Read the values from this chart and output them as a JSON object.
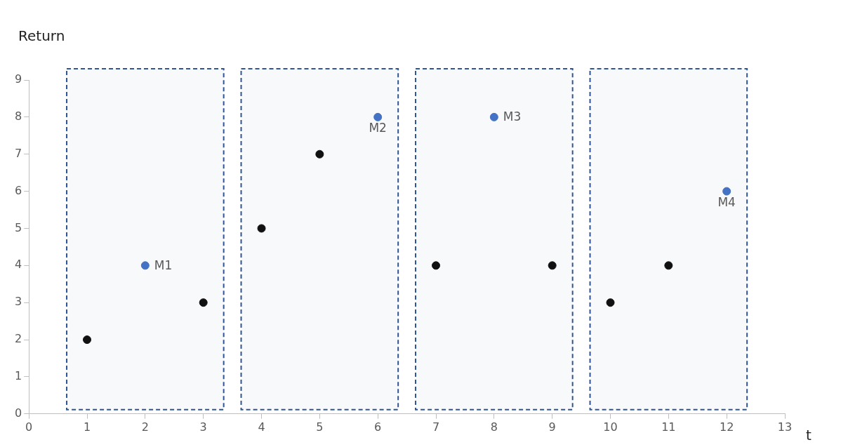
{
  "chart_data": {
    "type": "scatter",
    "ylabel": "Return",
    "xlabel": "t",
    "xlim": [
      0,
      13
    ],
    "xticks": [
      0,
      1,
      2,
      3,
      4,
      5,
      6,
      7,
      8,
      9,
      10,
      11,
      12,
      13
    ],
    "ylim": [
      0,
      9
    ],
    "yticks": [
      0,
      1,
      2,
      3,
      4,
      5,
      6,
      7,
      8,
      9
    ],
    "series": [
      {
        "color": "#111111",
        "x": [
          1,
          3,
          4,
          5,
          7,
          9,
          10,
          11
        ],
        "values": [
          2,
          3,
          5,
          7,
          4,
          4,
          3,
          4
        ]
      },
      {
        "color": "#4472c4",
        "x": [
          2,
          6,
          8,
          12
        ],
        "values": [
          4,
          8,
          8,
          6
        ]
      }
    ],
    "bands": [
      {
        "axis": "x",
        "from": 0.65,
        "to": 3.35,
        "color": "#2f5597"
      },
      {
        "axis": "x",
        "from": 3.65,
        "to": 6.35,
        "color": "#2f5597"
      },
      {
        "axis": "x",
        "from": 6.65,
        "to": 9.35,
        "color": "#2f5597"
      },
      {
        "axis": "x",
        "from": 9.65,
        "to": 12.35,
        "color": "#2f5597"
      }
    ],
    "annotations": [
      {
        "text": "M1",
        "x": 2,
        "y": 4
      },
      {
        "text": "M2",
        "x": 6,
        "y": 8
      },
      {
        "text": "M3",
        "x": 8,
        "y": 8
      },
      {
        "text": "M4",
        "x": 12,
        "y": 6
      }
    ],
    "marker": "circle",
    "grid": false,
    "legend": false
  }
}
